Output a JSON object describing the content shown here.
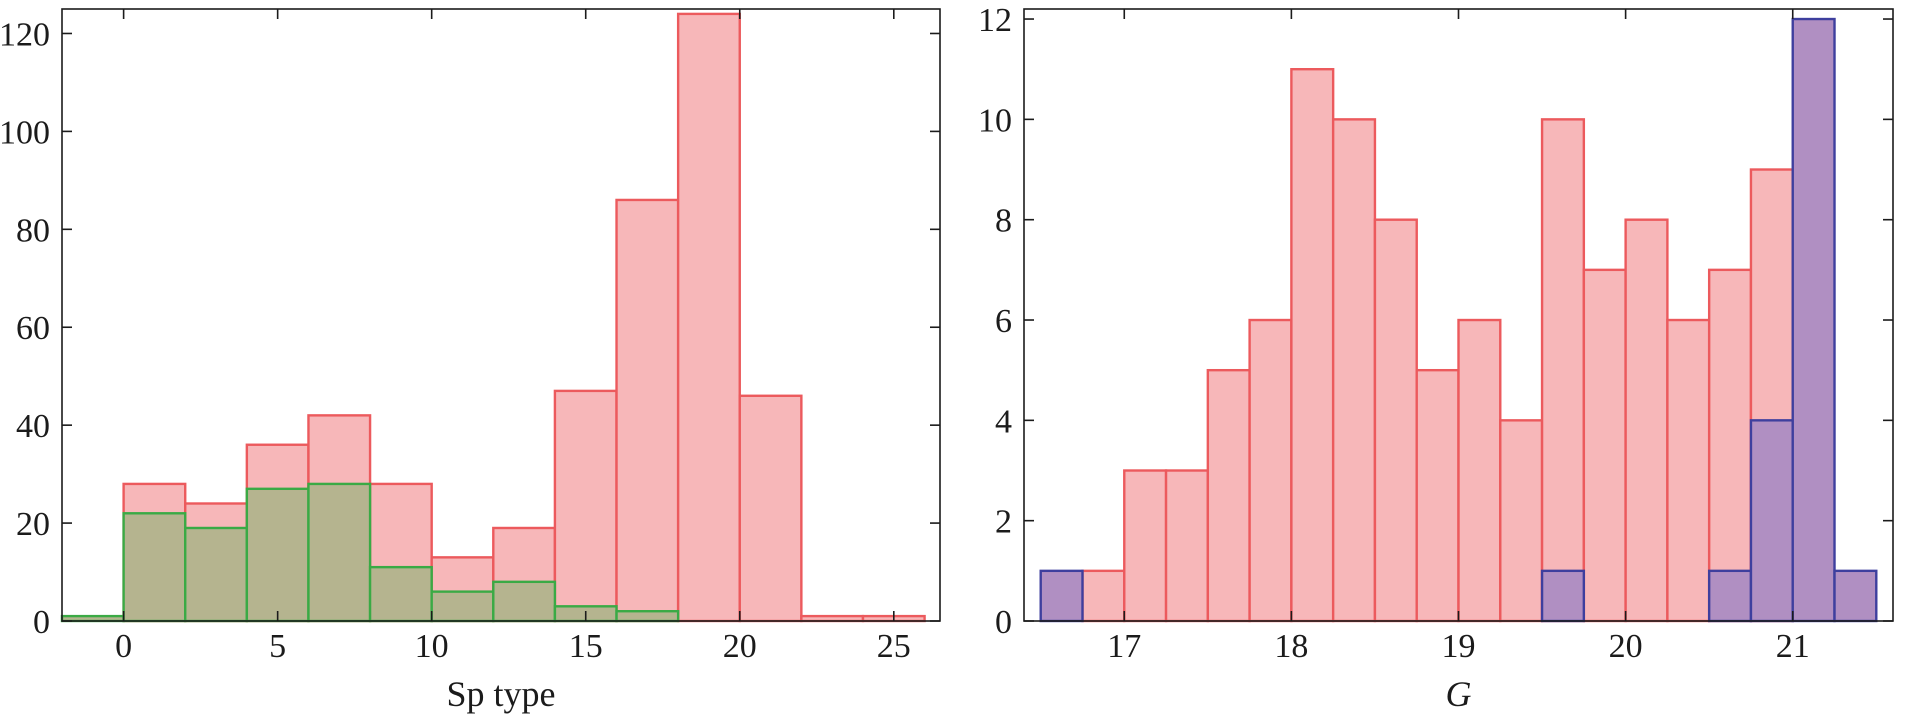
{
  "chart_data": [
    {
      "type": "bar",
      "subtype": "histogram",
      "xlabel": "Sp type",
      "ylabel": "",
      "xlim": [
        -2,
        26.5
      ],
      "ylim": [
        0,
        125
      ],
      "xticks": [
        0,
        5,
        10,
        15,
        20,
        25
      ],
      "yticks": [
        0,
        20,
        40,
        60,
        80,
        100,
        120
      ],
      "grid": false,
      "bin_edges": [
        -2,
        0,
        2,
        4,
        6,
        8,
        10,
        12,
        14,
        16,
        18,
        20,
        22,
        24,
        26
      ],
      "series": [
        {
          "values": [
            0,
            28,
            24,
            36,
            42,
            28,
            13,
            19,
            47,
            86,
            124,
            46,
            1,
            1
          ],
          "fill": "#f7b7b9",
          "stroke": "#ec5a5d"
        },
        {
          "values": [
            1,
            22,
            19,
            27,
            28,
            11,
            6,
            8,
            3,
            2,
            0,
            0,
            0,
            0
          ],
          "fill": "#b5b48f",
          "stroke": "#3aaa45"
        }
      ]
    },
    {
      "type": "bar",
      "subtype": "histogram",
      "xlabel": "G",
      "ylabel": "",
      "xlim": [
        16.4,
        21.6
      ],
      "ylim": [
        0,
        12.2
      ],
      "xticks": [
        17,
        18,
        19,
        20,
        21
      ],
      "yticks": [
        0,
        2,
        4,
        6,
        8,
        10,
        12
      ],
      "grid": false,
      "bin_edges": [
        16.5,
        16.75,
        17,
        17.25,
        17.5,
        17.75,
        18,
        18.25,
        18.5,
        18.75,
        19,
        19.25,
        19.5,
        19.75,
        20,
        20.25,
        20.5,
        20.75,
        21,
        21.25,
        21.5
      ],
      "series": [
        {
          "values": [
            0,
            1,
            3,
            3,
            5,
            6,
            11,
            10,
            8,
            5,
            6,
            4,
            10,
            7,
            8,
            6,
            7,
            9,
            0,
            0
          ],
          "fill": "#f7b7b9",
          "stroke": "#ec5a5d"
        },
        {
          "values": [
            1,
            0,
            0,
            0,
            0,
            0,
            0,
            0,
            0,
            0,
            0,
            0,
            1,
            0,
            0,
            0,
            1,
            4,
            12,
            1
          ],
          "fill": "#b08fc2",
          "stroke": "#3e3f9e"
        }
      ]
    }
  ]
}
